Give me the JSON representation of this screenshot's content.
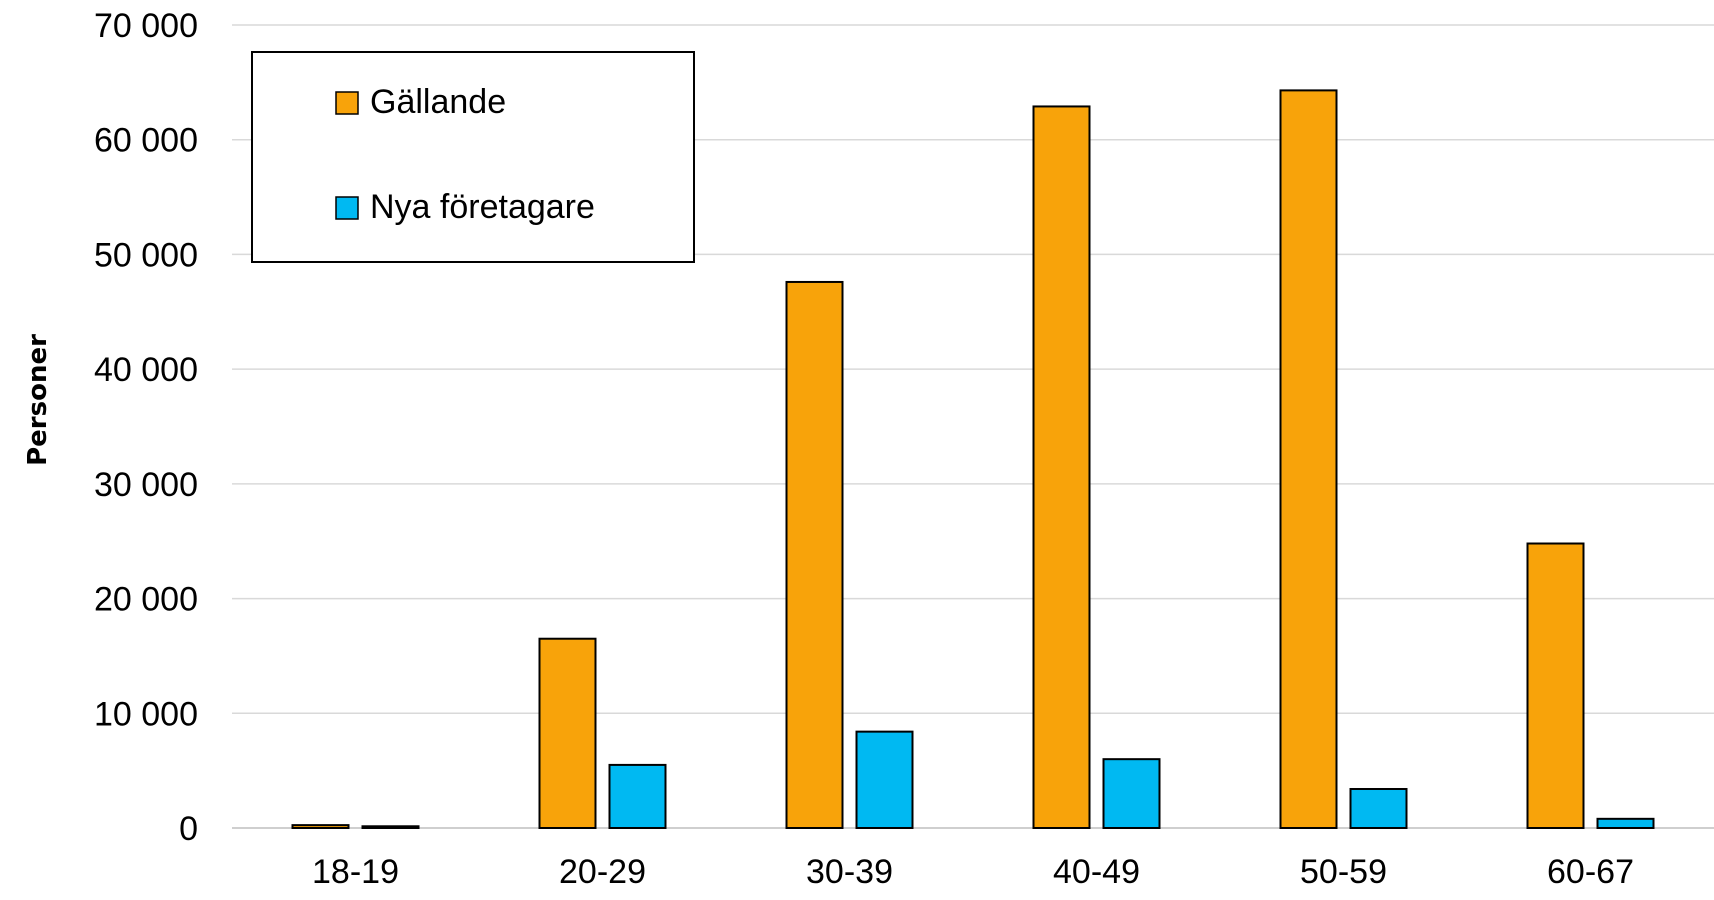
{
  "chart_data": {
    "type": "bar",
    "title": "",
    "xlabel": "",
    "ylabel": "Personer",
    "categories": [
      "18-19",
      "20-29",
      "30-39",
      "40-49",
      "50-59",
      "60-67"
    ],
    "series": [
      {
        "name": "Gällande",
        "color": "#f8a30a",
        "values": [
          250,
          16500,
          47600,
          62900,
          64300,
          24800
        ]
      },
      {
        "name": "Nya företagare",
        "color": "#00b9f2",
        "values": [
          150,
          5500,
          8400,
          6000,
          3400,
          800
        ]
      }
    ],
    "ylim": [
      0,
      70000
    ],
    "yticks": [
      0,
      10000,
      20000,
      30000,
      40000,
      50000,
      60000,
      70000
    ],
    "ytick_labels": [
      "0",
      "10 000",
      "20 000",
      "30 000",
      "40 000",
      "50 000",
      "60 000",
      "70 000"
    ],
    "grid": true,
    "legend_position": "top-left"
  }
}
